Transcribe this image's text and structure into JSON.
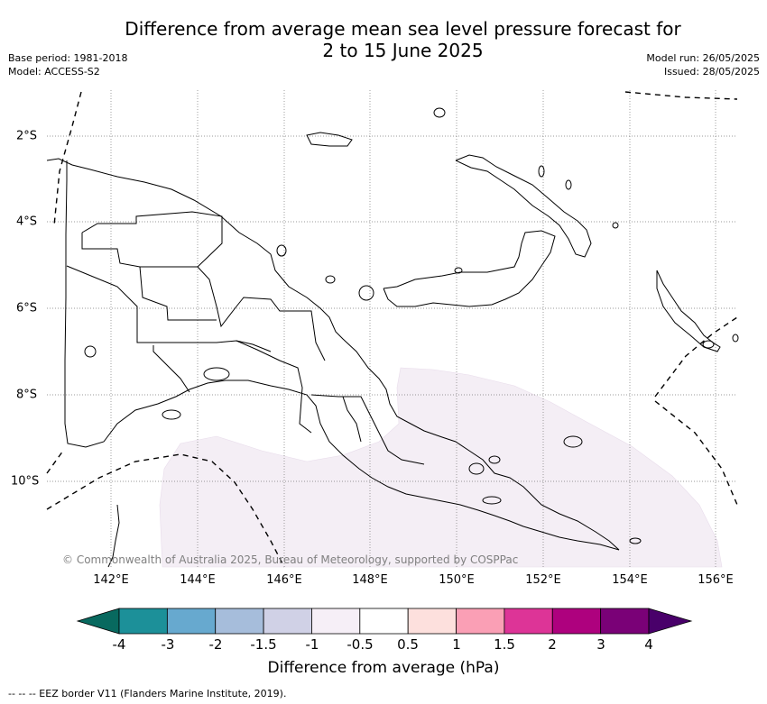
{
  "title_line1": "Difference from average mean sea level pressure forecast for",
  "title_line2": "2 to 15 June 2025",
  "meta": {
    "base_period": "Base period: 1981-2018",
    "model": "Model: ACCESS-S2",
    "model_run": "Model run: 26/05/2025",
    "issued": "Issued: 28/05/2025"
  },
  "map": {
    "longitude_labels": [
      "142°E",
      "144°E",
      "146°E",
      "148°E",
      "150°E",
      "152°E",
      "154°E",
      "156°E"
    ],
    "latitude_labels": [
      "2°S",
      "4°S",
      "6°S",
      "8°S",
      "10°S"
    ],
    "copyright": "© Commonwealth of Australia 2025, Bureau of Meteorology, supported by COSPPac",
    "anomaly_region_bin": "-1 to -0.5",
    "anomaly_color": "#f4eef5"
  },
  "legend": {
    "title": "Difference from average (hPa)",
    "ticks": [
      "-4",
      "-3",
      "-2",
      "-1.5",
      "-1",
      "-0.5",
      "0.5",
      "1",
      "1.5",
      "2",
      "3",
      "4"
    ],
    "colors": [
      "#08695f",
      "#1c9099",
      "#67a9cf",
      "#a6bddb",
      "#d0d1e6",
      "#f6eff7",
      "#ffffff",
      "#fde0dd",
      "#fa9fb5",
      "#dd3497",
      "#ae017e",
      "#7a0177",
      "#49006a"
    ]
  },
  "eez_note": "--  --  -- EEZ border V11 (Flanders Marine Institute, 2019)."
}
